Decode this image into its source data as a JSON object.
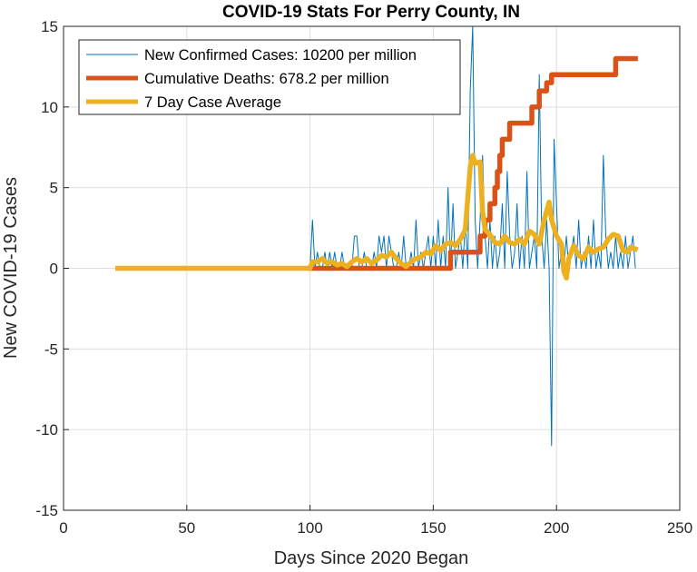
{
  "chart_data": {
    "type": "line",
    "title": "COVID-19 Stats For Perry County, IN",
    "xlabel": "Days Since 2020 Began",
    "ylabel": "New COVID-19 Cases",
    "xlim": [
      0,
      250
    ],
    "ylim": [
      -15,
      15
    ],
    "xticks": [
      "0",
      "50",
      "100",
      "150",
      "200",
      "250"
    ],
    "yticks": [
      "-15",
      "-10",
      "-5",
      "0",
      "5",
      "10",
      "15"
    ],
    "xtick_values": [
      0,
      50,
      100,
      150,
      200,
      250
    ],
    "ytick_values": [
      -15,
      -10,
      -5,
      0,
      5,
      10,
      15
    ],
    "grid": true,
    "legend_position": "top-left",
    "series": [
      {
        "name": "New Confirmed Cases: 10200 per million",
        "color": "#0072BD",
        "points": [
          [
            100,
            0
          ],
          [
            101,
            3
          ],
          [
            102,
            0
          ],
          [
            103,
            1
          ],
          [
            104,
            0
          ],
          [
            105,
            0
          ],
          [
            106,
            1
          ],
          [
            107,
            0
          ],
          [
            108,
            1
          ],
          [
            109,
            0
          ],
          [
            110,
            1
          ],
          [
            111,
            0
          ],
          [
            112,
            0
          ],
          [
            113,
            1
          ],
          [
            114,
            0
          ],
          [
            115,
            0
          ],
          [
            116,
            0
          ],
          [
            117,
            0
          ],
          [
            118,
            2
          ],
          [
            119,
            2
          ],
          [
            120,
            0
          ],
          [
            121,
            0
          ],
          [
            122,
            1
          ],
          [
            123,
            0
          ],
          [
            124,
            0
          ],
          [
            125,
            0
          ],
          [
            126,
            1
          ],
          [
            127,
            0
          ],
          [
            128,
            2
          ],
          [
            129,
            1
          ],
          [
            130,
            2
          ],
          [
            131,
            0
          ],
          [
            132,
            2
          ],
          [
            133,
            1
          ],
          [
            134,
            0
          ],
          [
            135,
            0
          ],
          [
            136,
            1
          ],
          [
            137,
            0
          ],
          [
            138,
            2
          ],
          [
            139,
            0
          ],
          [
            140,
            0
          ],
          [
            141,
            1
          ],
          [
            142,
            0
          ],
          [
            143,
            3
          ],
          [
            144,
            0
          ],
          [
            145,
            1
          ],
          [
            146,
            0
          ],
          [
            147,
            1
          ],
          [
            148,
            2
          ],
          [
            149,
            0
          ],
          [
            150,
            2
          ],
          [
            151,
            0
          ],
          [
            152,
            3
          ],
          [
            153,
            0
          ],
          [
            154,
            2
          ],
          [
            155,
            0
          ],
          [
            156,
            5
          ],
          [
            157,
            0
          ],
          [
            158,
            4
          ],
          [
            159,
            0
          ],
          [
            160,
            1
          ],
          [
            161,
            2
          ],
          [
            162,
            0
          ],
          [
            163,
            3
          ],
          [
            164,
            0
          ],
          [
            165,
            11
          ],
          [
            166,
            15
          ],
          [
            167,
            3
          ],
          [
            168,
            0
          ],
          [
            169,
            3
          ],
          [
            170,
            7
          ],
          [
            171,
            2
          ],
          [
            172,
            0
          ],
          [
            173,
            3
          ],
          [
            174,
            0
          ],
          [
            175,
            2
          ],
          [
            176,
            0
          ],
          [
            177,
            1
          ],
          [
            178,
            4
          ],
          [
            179,
            0
          ],
          [
            180,
            6
          ],
          [
            181,
            2
          ],
          [
            182,
            0
          ],
          [
            183,
            1
          ],
          [
            184,
            4
          ],
          [
            185,
            0
          ],
          [
            186,
            2
          ],
          [
            187,
            0
          ],
          [
            188,
            6
          ],
          [
            189,
            0
          ],
          [
            190,
            1
          ],
          [
            191,
            2
          ],
          [
            192,
            0
          ],
          [
            193,
            12
          ],
          [
            194,
            2
          ],
          [
            195,
            0
          ],
          [
            196,
            3
          ],
          [
            197,
            0
          ],
          [
            198,
            -11
          ],
          [
            199,
            8
          ],
          [
            200,
            4
          ],
          [
            201,
            0
          ],
          [
            202,
            1
          ],
          [
            203,
            0
          ],
          [
            204,
            2
          ],
          [
            205,
            0
          ],
          [
            206,
            1
          ],
          [
            207,
            2
          ],
          [
            208,
            0
          ],
          [
            209,
            3
          ],
          [
            210,
            0
          ],
          [
            211,
            1
          ],
          [
            212,
            0
          ],
          [
            213,
            2
          ],
          [
            214,
            0
          ],
          [
            215,
            3
          ],
          [
            216,
            0
          ],
          [
            217,
            1
          ],
          [
            218,
            0
          ],
          [
            219,
            7
          ],
          [
            220,
            2
          ],
          [
            221,
            0
          ],
          [
            222,
            1
          ],
          [
            223,
            0
          ],
          [
            224,
            2
          ],
          [
            225,
            0
          ],
          [
            226,
            1
          ],
          [
            227,
            0
          ],
          [
            228,
            2
          ],
          [
            229,
            0
          ],
          [
            230,
            1
          ],
          [
            231,
            2
          ],
          [
            232,
            0
          ]
        ]
      },
      {
        "name": "Cumulative Deaths: 678.2 per million",
        "color": "#D95319",
        "points": [
          [
            100,
            0
          ],
          [
            157,
            0
          ],
          [
            157,
            1
          ],
          [
            169,
            1
          ],
          [
            169,
            2
          ],
          [
            171,
            2
          ],
          [
            171,
            3
          ],
          [
            173,
            3
          ],
          [
            173,
            4
          ],
          [
            175,
            4
          ],
          [
            175,
            5
          ],
          [
            176,
            5
          ],
          [
            176,
            6
          ],
          [
            177,
            6
          ],
          [
            177,
            7
          ],
          [
            178,
            7
          ],
          [
            178,
            8
          ],
          [
            181,
            8
          ],
          [
            181,
            9
          ],
          [
            190,
            9
          ],
          [
            190,
            10
          ],
          [
            193,
            10
          ],
          [
            193,
            11
          ],
          [
            196,
            11
          ],
          [
            196,
            11.5
          ],
          [
            198,
            11.5
          ],
          [
            198,
            12
          ],
          [
            224,
            12
          ],
          [
            224,
            13
          ],
          [
            232,
            13
          ]
        ]
      },
      {
        "name": "7 Day Case Average",
        "color": "#EDB120",
        "points": [
          [
            22,
            0
          ],
          [
            100,
            0
          ],
          [
            101,
            0.4
          ],
          [
            103,
            0.4
          ],
          [
            105,
            0.6
          ],
          [
            107,
            0.3
          ],
          [
            109,
            0.4
          ],
          [
            111,
            0.2
          ],
          [
            113,
            0.3
          ],
          [
            115,
            0.1
          ],
          [
            117,
            0.4
          ],
          [
            119,
            0.6
          ],
          [
            121,
            0.4
          ],
          [
            123,
            0.6
          ],
          [
            125,
            0.3
          ],
          [
            127,
            0.5
          ],
          [
            129,
            0.8
          ],
          [
            131,
            0.7
          ],
          [
            133,
            1.0
          ],
          [
            135,
            0.6
          ],
          [
            137,
            0.3
          ],
          [
            139,
            0.1
          ],
          [
            141,
            0.4
          ],
          [
            143,
            0.6
          ],
          [
            145,
            0.7
          ],
          [
            147,
            1.0
          ],
          [
            149,
            0.9
          ],
          [
            151,
            1.4
          ],
          [
            153,
            1.1
          ],
          [
            155,
            1.5
          ],
          [
            157,
            1.6
          ],
          [
            159,
            1.4
          ],
          [
            161,
            1.8
          ],
          [
            163,
            2.4
          ],
          [
            165,
            6.3
          ],
          [
            166,
            7.0
          ],
          [
            167,
            6.5
          ],
          [
            169,
            6.6
          ],
          [
            170,
            3.5
          ],
          [
            171,
            2.4
          ],
          [
            173,
            2.1
          ],
          [
            175,
            1.6
          ],
          [
            177,
            1.5
          ],
          [
            179,
            2.0
          ],
          [
            181,
            1.6
          ],
          [
            183,
            1.5
          ],
          [
            185,
            1.8
          ],
          [
            187,
            1.5
          ],
          [
            189,
            2.3
          ],
          [
            191,
            2.1
          ],
          [
            193,
            1.5
          ],
          [
            195,
            3.0
          ],
          [
            197,
            4.1
          ],
          [
            198,
            3.0
          ],
          [
            200,
            2.0
          ],
          [
            202,
            1.5
          ],
          [
            203,
            -0.2
          ],
          [
            204,
            -0.6
          ],
          [
            205,
            0.6
          ],
          [
            207,
            1.4
          ],
          [
            209,
            0.8
          ],
          [
            211,
            0.6
          ],
          [
            213,
            1.3
          ],
          [
            215,
            1.0
          ],
          [
            217,
            1.2
          ],
          [
            219,
            1.3
          ],
          [
            221,
            1.8
          ],
          [
            223,
            2.1
          ],
          [
            225,
            2.0
          ],
          [
            227,
            1.1
          ],
          [
            229,
            1.0
          ],
          [
            230,
            1.3
          ],
          [
            232,
            1.2
          ]
        ]
      }
    ]
  }
}
